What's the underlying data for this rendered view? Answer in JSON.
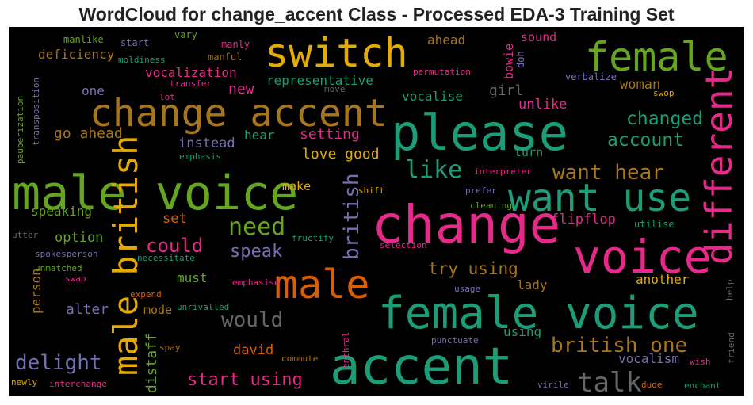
{
  "chart_data": {
    "type": "wordcloud",
    "title": "WordCloud for change_accent Class - Processed EDA-3 Training Set",
    "background": "#000000",
    "palette": {
      "teal": "#1b9e77",
      "orange": "#d95f02",
      "purple": "#7570b3",
      "pink": "#e7298a",
      "green": "#66a61e",
      "gold": "#e6ab02",
      "brown": "#a6761d",
      "gray": "#666666"
    },
    "words": [
      {
        "text": "switch",
        "color": "#e6ab02"
      },
      {
        "text": "female",
        "color": "#66a61e"
      },
      {
        "text": "change accent",
        "color": "#a6761d"
      },
      {
        "text": "please",
        "color": "#1b9e77"
      },
      {
        "text": "male voice",
        "color": "#66a61e"
      },
      {
        "text": "want use",
        "color": "#1b9e77"
      },
      {
        "text": "change",
        "color": "#e7298a"
      },
      {
        "text": "different",
        "color": "#e7298a"
      },
      {
        "text": "voice",
        "color": "#e7298a"
      },
      {
        "text": "male british",
        "color": "#e6ab02"
      },
      {
        "text": "male",
        "color": "#d95f02"
      },
      {
        "text": "female voice",
        "color": "#1b9e77"
      },
      {
        "text": "accent",
        "color": "#1b9e77"
      },
      {
        "text": "talk",
        "color": "#666666"
      },
      {
        "text": "british",
        "color": "#7570b3"
      },
      {
        "text": "need",
        "color": "#66a61e"
      },
      {
        "text": "like",
        "color": "#1b9e77"
      },
      {
        "text": "want hear",
        "color": "#a6761d"
      },
      {
        "text": "british one",
        "color": "#a6761d"
      },
      {
        "text": "would",
        "color": "#666666"
      },
      {
        "text": "delight",
        "color": "#7570b3"
      },
      {
        "text": "account",
        "color": "#1b9e77"
      },
      {
        "text": "changed",
        "color": "#1b9e77"
      },
      {
        "text": "could",
        "color": "#e7298a"
      },
      {
        "text": "start using",
        "color": "#e7298a"
      },
      {
        "text": "distaff",
        "color": "#66a61e"
      },
      {
        "text": "speak",
        "color": "#7570b3"
      },
      {
        "text": "try using",
        "color": "#a6761d"
      },
      {
        "text": "woman",
        "color": "#a6761d"
      },
      {
        "text": "go ahead",
        "color": "#a6761d"
      },
      {
        "text": "setting",
        "color": "#e7298a"
      },
      {
        "text": "love good",
        "color": "#e6ab02"
      },
      {
        "text": "representative",
        "color": "#1b9e77"
      },
      {
        "text": "vocalization",
        "color": "#e7298a"
      },
      {
        "text": "deficiency",
        "color": "#a6761d"
      },
      {
        "text": "new",
        "color": "#e7298a"
      },
      {
        "text": "instead",
        "color": "#7570b3"
      },
      {
        "text": "vocalise",
        "color": "#1b9e77"
      },
      {
        "text": "girl",
        "color": "#666666"
      },
      {
        "text": "unlike",
        "color": "#e7298a"
      },
      {
        "text": "option",
        "color": "#66a61e"
      },
      {
        "text": "alter",
        "color": "#7570b3"
      },
      {
        "text": "david",
        "color": "#d95f02"
      },
      {
        "text": "must",
        "color": "#66a61e"
      },
      {
        "text": "set",
        "color": "#d95f02"
      },
      {
        "text": "speaking",
        "color": "#66a61e"
      },
      {
        "text": "person",
        "color": "#a6761d"
      },
      {
        "text": "flipflop",
        "color": "#e7298a"
      },
      {
        "text": "lady",
        "color": "#a6761d"
      },
      {
        "text": "another",
        "color": "#e6ab02"
      },
      {
        "text": "using",
        "color": "#1b9e77"
      },
      {
        "text": "vocalism",
        "color": "#7570b3"
      },
      {
        "text": "hear",
        "color": "#1b9e77"
      },
      {
        "text": "make",
        "color": "#e6ab02"
      },
      {
        "text": "turn",
        "color": "#1b9e77"
      },
      {
        "text": "ahead",
        "color": "#a6761d"
      },
      {
        "text": "sound",
        "color": "#e7298a"
      },
      {
        "text": "bowie",
        "color": "#e7298a"
      },
      {
        "text": "one",
        "color": "#7570b3"
      },
      {
        "text": "mode",
        "color": "#a6761d"
      },
      {
        "text": "doh",
        "color": "#7570b3"
      },
      {
        "text": "manlike",
        "color": "#66a61e"
      },
      {
        "text": "start",
        "color": "#7570b3"
      },
      {
        "text": "vary",
        "color": "#66a61e"
      },
      {
        "text": "manly",
        "color": "#e7298a"
      },
      {
        "text": "moldiness",
        "color": "#1b9e77"
      },
      {
        "text": "manful",
        "color": "#a6761d"
      },
      {
        "text": "permutation",
        "color": "#e7298a"
      },
      {
        "text": "transfer",
        "color": "#e7298a"
      },
      {
        "text": "lot",
        "color": "#e7298a"
      },
      {
        "text": "move",
        "color": "#666666"
      },
      {
        "text": "verbalize",
        "color": "#7570b3"
      },
      {
        "text": "swop",
        "color": "#e6ab02"
      },
      {
        "text": "transposition",
        "color": "#7570b3"
      },
      {
        "text": "pauperization",
        "color": "#66a61e"
      },
      {
        "text": "emphasis",
        "color": "#1b9e77"
      },
      {
        "text": "interpreter",
        "color": "#e7298a"
      },
      {
        "text": "shift",
        "color": "#e6ab02"
      },
      {
        "text": "prefer",
        "color": "#7570b3"
      },
      {
        "text": "cleaning",
        "color": "#66a61e"
      },
      {
        "text": "utilise",
        "color": "#1b9e77"
      },
      {
        "text": "utter",
        "color": "#666666"
      },
      {
        "text": "fructify",
        "color": "#1b9e77"
      },
      {
        "text": "selection",
        "color": "#e7298a"
      },
      {
        "text": "spokesperson",
        "color": "#7570b3"
      },
      {
        "text": "necessitate",
        "color": "#1b9e77"
      },
      {
        "text": "unmatched",
        "color": "#66a61e"
      },
      {
        "text": "swap",
        "color": "#e7298a"
      },
      {
        "text": "emphasise",
        "color": "#e7298a"
      },
      {
        "text": "usage",
        "color": "#7570b3"
      },
      {
        "text": "expend",
        "color": "#d95f02"
      },
      {
        "text": "unrivalled",
        "color": "#1b9e77"
      },
      {
        "text": "help",
        "color": "#666666"
      },
      {
        "text": "spay",
        "color": "#a6761d"
      },
      {
        "text": "enthral",
        "color": "#e7298a"
      },
      {
        "text": "punctuate",
        "color": "#7570b3"
      },
      {
        "text": "wish",
        "color": "#e7298a"
      },
      {
        "text": "friend",
        "color": "#666666"
      },
      {
        "text": "commute",
        "color": "#a6761d"
      },
      {
        "text": "newly",
        "color": "#e6ab02"
      },
      {
        "text": "interchange",
        "color": "#e7298a"
      },
      {
        "text": "virile",
        "color": "#7570b3"
      },
      {
        "text": "dude",
        "color": "#d95f02"
      },
      {
        "text": "enchant",
        "color": "#1b9e77"
      }
    ]
  }
}
